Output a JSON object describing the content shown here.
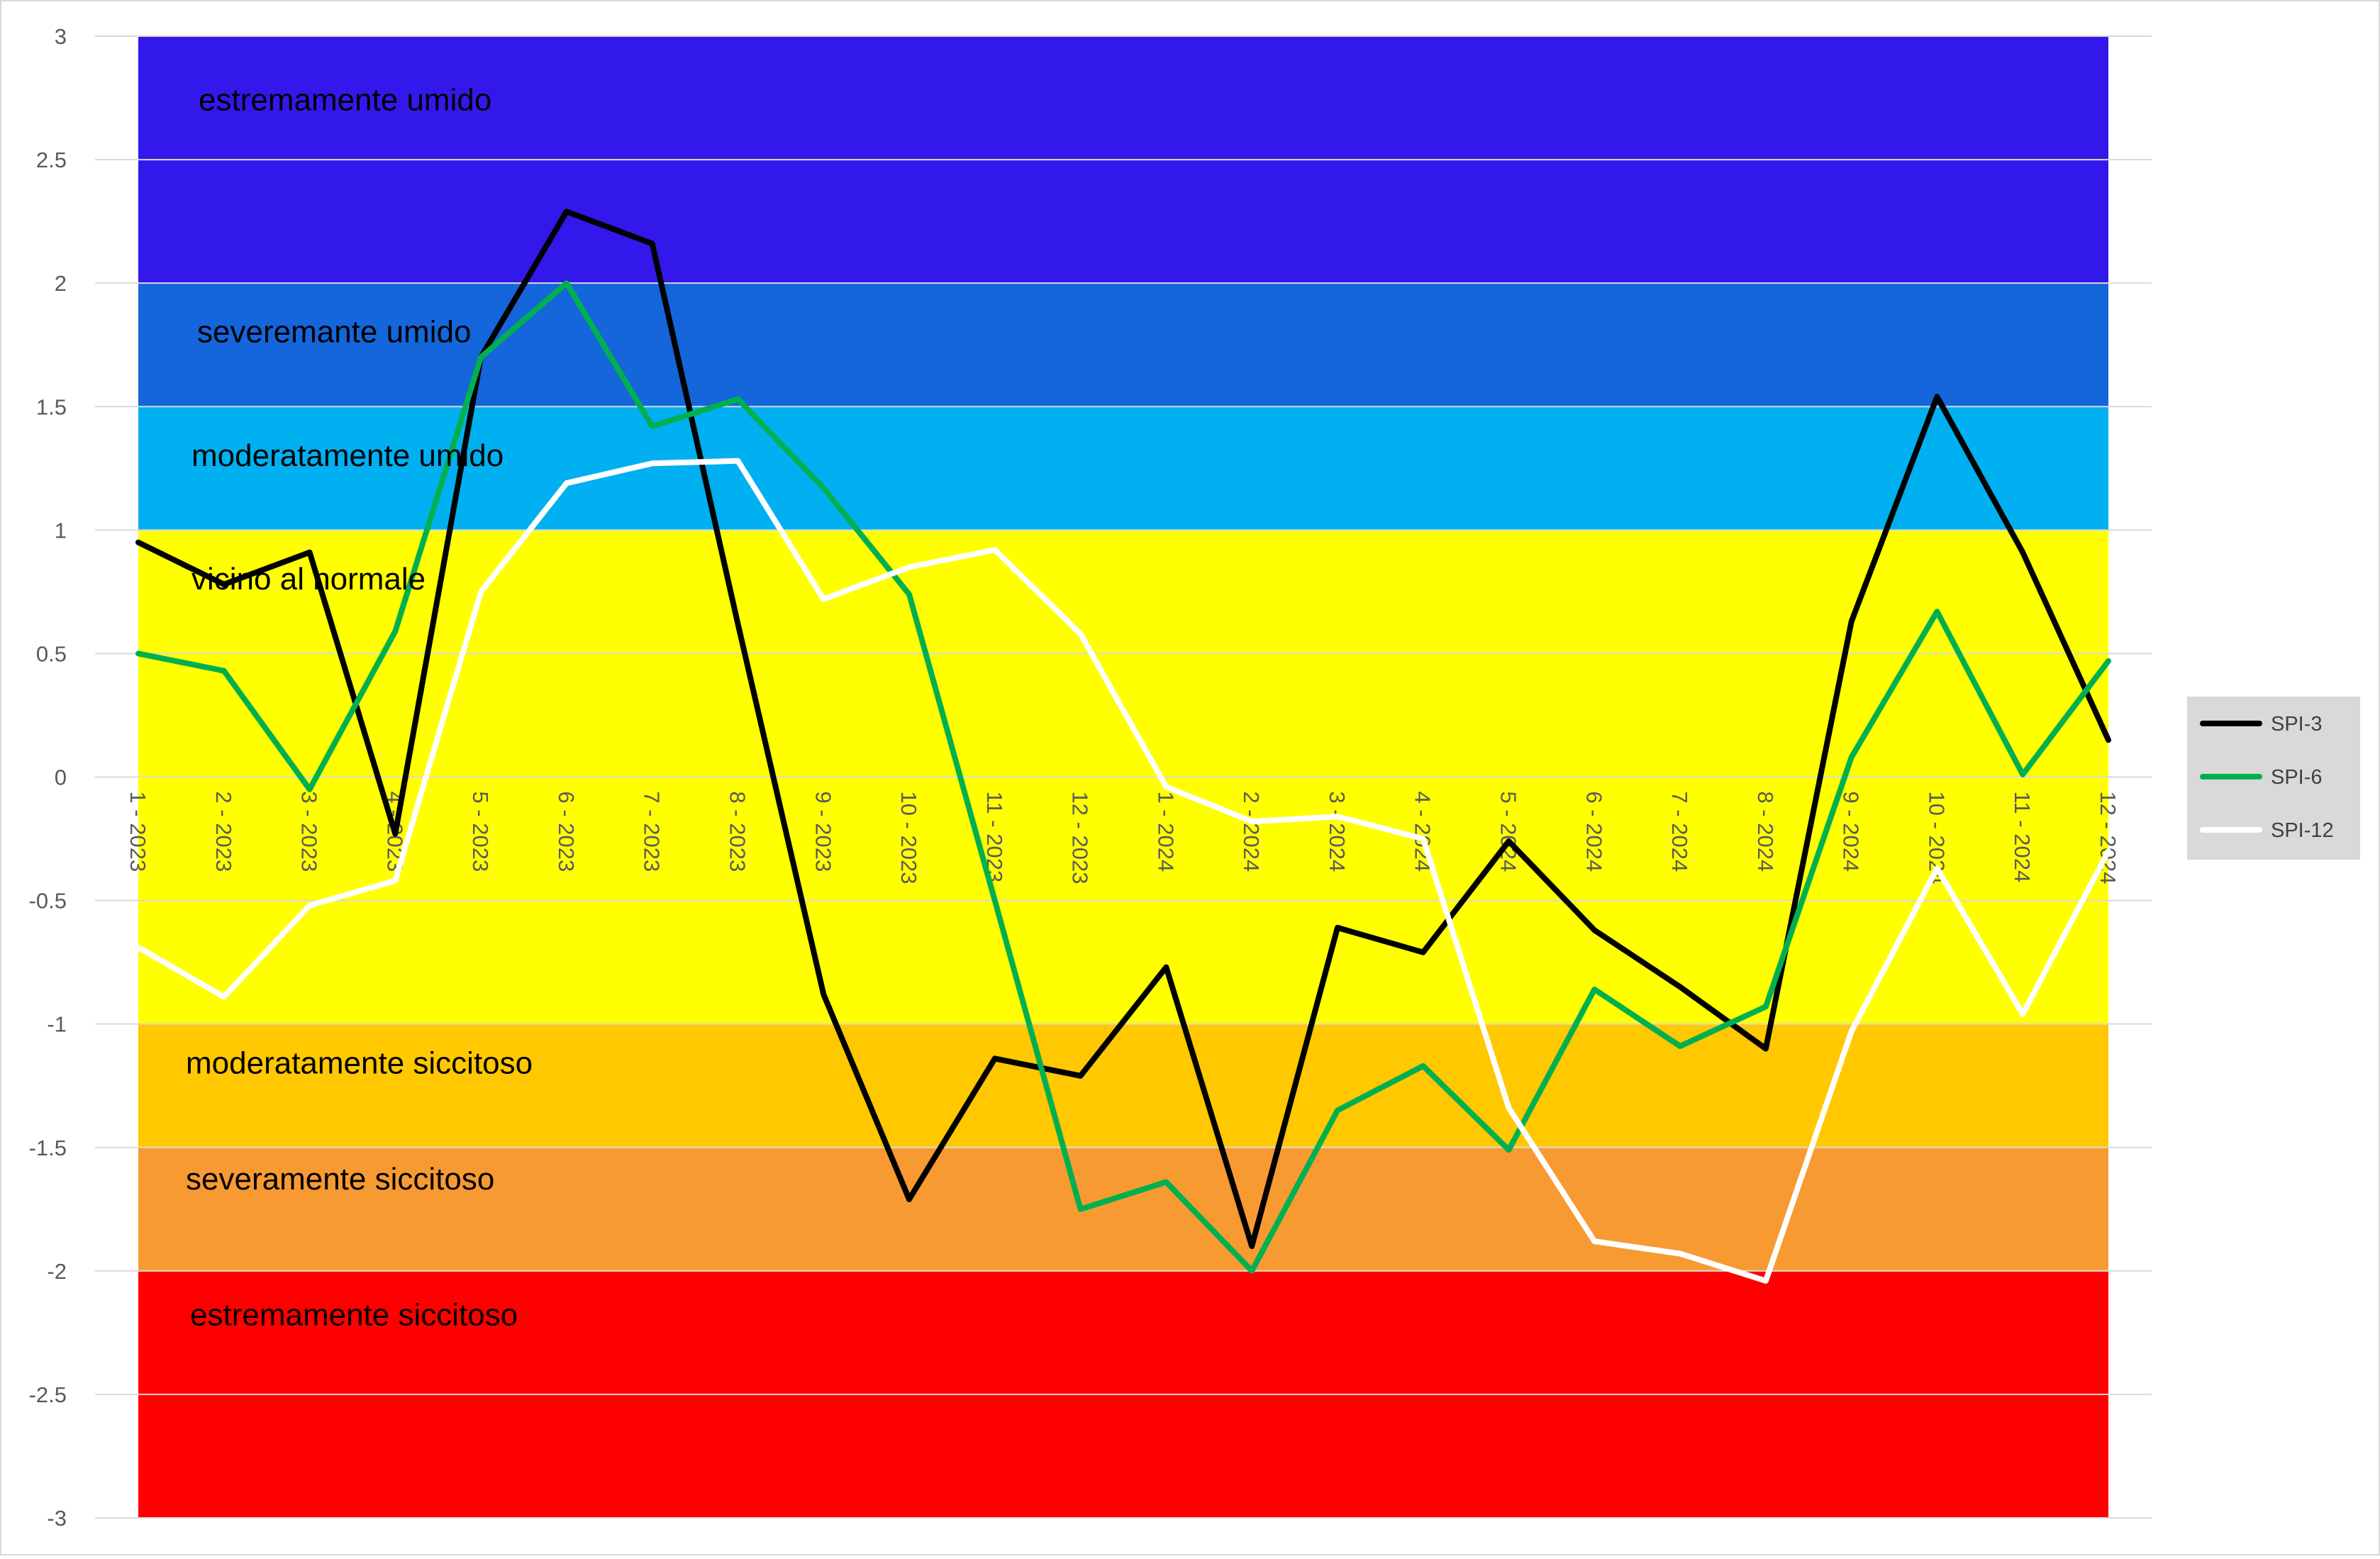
{
  "chart_data": {
    "type": "line",
    "title": "",
    "xlabel": "",
    "ylabel": "",
    "ylim": [
      -3,
      3
    ],
    "y_ticks": [
      "3",
      "2.5",
      "2",
      "1.5",
      "1",
      "0.5",
      "0",
      "-0.5",
      "-1",
      "-1.5",
      "-2",
      "-2.5",
      "-3"
    ],
    "grid": true,
    "legend_position": "right",
    "categories": [
      "1 - 2023",
      "2 - 2023",
      "3 - 2023",
      "4 - 2023",
      "5 - 2023",
      "6 - 2023",
      "7 - 2023",
      "8 - 2023",
      "9 - 2023",
      "10 - 2023",
      "11 - 2023",
      "12 - 2023",
      "1 - 2024",
      "2 - 2024",
      "3 - 2024",
      "4 - 2024",
      "5 - 2024",
      "6 - 2024",
      "7 - 2024",
      "8 - 2024",
      "9 - 2024",
      "10 - 2024",
      "11 - 2024",
      "12 - 2024"
    ],
    "bands": [
      {
        "from": 2,
        "to": 3,
        "color": "#3318EB",
        "label": "estremamente umido"
      },
      {
        "from": 1.5,
        "to": 2,
        "color": "#1565DB",
        "label": "severemante umido"
      },
      {
        "from": 1,
        "to": 1.5,
        "color": "#00B0F0",
        "label": "moderatamente umido"
      },
      {
        "from": -1,
        "to": 1,
        "color": "#FFFF00",
        "label": "vicino al normale"
      },
      {
        "from": -1.5,
        "to": -1,
        "color": "#FFC800",
        "label": "moderatamente siccitoso"
      },
      {
        "from": -2,
        "to": -1.5,
        "color": "#F79A32",
        "label": "severamente siccitoso"
      },
      {
        "from": -3,
        "to": -2,
        "color": "#FF0000",
        "label": "estremamente siccitoso"
      }
    ],
    "series": [
      {
        "name": "SPI-3",
        "color": "#000000",
        "values": [
          0.95,
          0.78,
          0.91,
          -0.23,
          1.7,
          2.29,
          2.16,
          0.62,
          -0.88,
          -1.71,
          -1.14,
          -1.21,
          -0.77,
          -1.9,
          -0.61,
          -0.71,
          -0.26,
          -0.62,
          -0.85,
          -1.1,
          0.63,
          1.54,
          0.91,
          0.15
        ]
      },
      {
        "name": "SPI-6",
        "color": "#00B050",
        "values": [
          0.5,
          0.43,
          -0.05,
          0.59,
          1.7,
          2.0,
          1.42,
          1.53,
          1.17,
          0.74,
          -0.5,
          -1.75,
          -1.64,
          -2.0,
          -1.35,
          -1.17,
          -1.51,
          -0.86,
          -1.09,
          -0.93,
          0.08,
          0.67,
          0.01,
          0.47
        ]
      },
      {
        "name": "SPI-12",
        "color": "#FFFFFF",
        "values": [
          -0.69,
          -0.89,
          -0.52,
          -0.42,
          0.75,
          1.19,
          1.27,
          1.28,
          0.72,
          0.85,
          0.92,
          0.58,
          -0.04,
          -0.18,
          -0.16,
          -0.25,
          -1.34,
          -1.88,
          -1.93,
          -2.04,
          -1.03,
          -0.37,
          -0.96,
          -0.3
        ]
      }
    ]
  }
}
